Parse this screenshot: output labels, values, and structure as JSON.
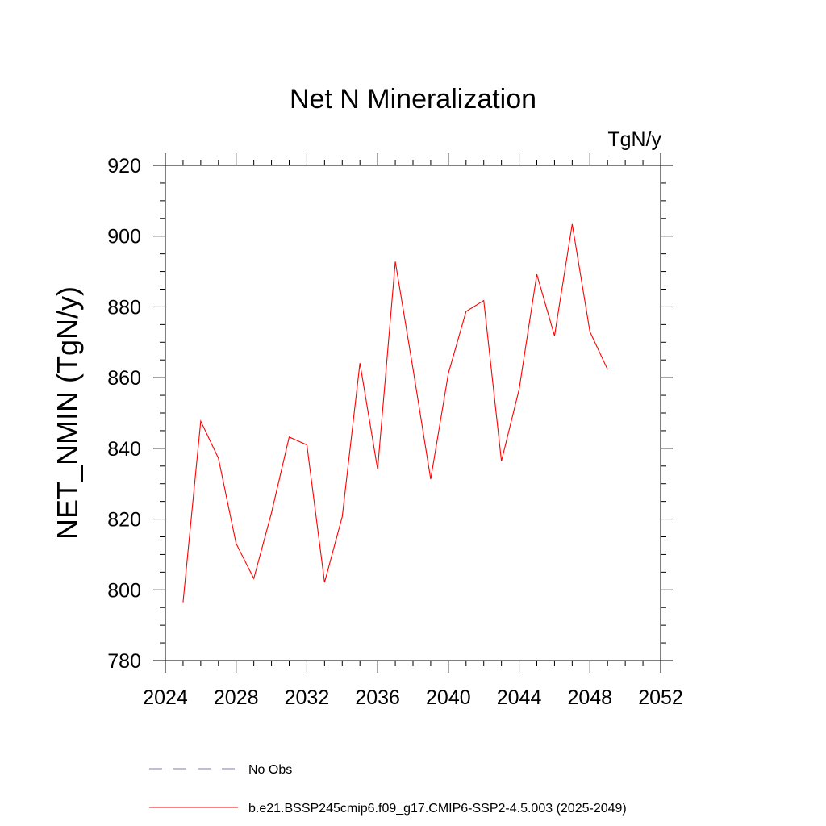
{
  "chart_data": {
    "type": "line",
    "title": "Net N Mineralization",
    "units_label": "TgN/y",
    "ylabel": "NET_NMIN  (TgN/y)",
    "xlabel": "",
    "xlim": [
      2024,
      2052
    ],
    "ylim": [
      780,
      920
    ],
    "x_ticks": [
      2024,
      2028,
      2032,
      2036,
      2040,
      2044,
      2048,
      2052
    ],
    "y_ticks": [
      780,
      800,
      820,
      840,
      860,
      880,
      900,
      920
    ],
    "series": [
      {
        "name": "b.e21.BSSP245cmip6.f09_g17.CMIP6-SSP2-4.5.003 (2025-2049)",
        "color": "#ff0000",
        "x": [
          2025,
          2026,
          2027,
          2028,
          2029,
          2030,
          2031,
          2032,
          2033,
          2034,
          2035,
          2036,
          2037,
          2038,
          2039,
          2040,
          2041,
          2042,
          2043,
          2044,
          2045,
          2046,
          2047,
          2048,
          2049
        ],
        "y": [
          796.5,
          847.7,
          837.2,
          813.1,
          803.2,
          821.8,
          843.2,
          841.0,
          802.1,
          820.7,
          864.1,
          834.1,
          892.8,
          862.5,
          831.3,
          861.2,
          878.7,
          881.8,
          836.4,
          856.7,
          889.2,
          871.8,
          903.4,
          873.0,
          862.3
        ]
      }
    ],
    "legend": [
      {
        "label": "No Obs",
        "color": "#7b7bb0",
        "style": "dashed"
      },
      {
        "label": "b.e21.BSSP245cmip6.f09_g17.CMIP6-SSP2-4.5.003 (2025-2049)",
        "color": "#ff0000",
        "style": "solid"
      }
    ]
  }
}
